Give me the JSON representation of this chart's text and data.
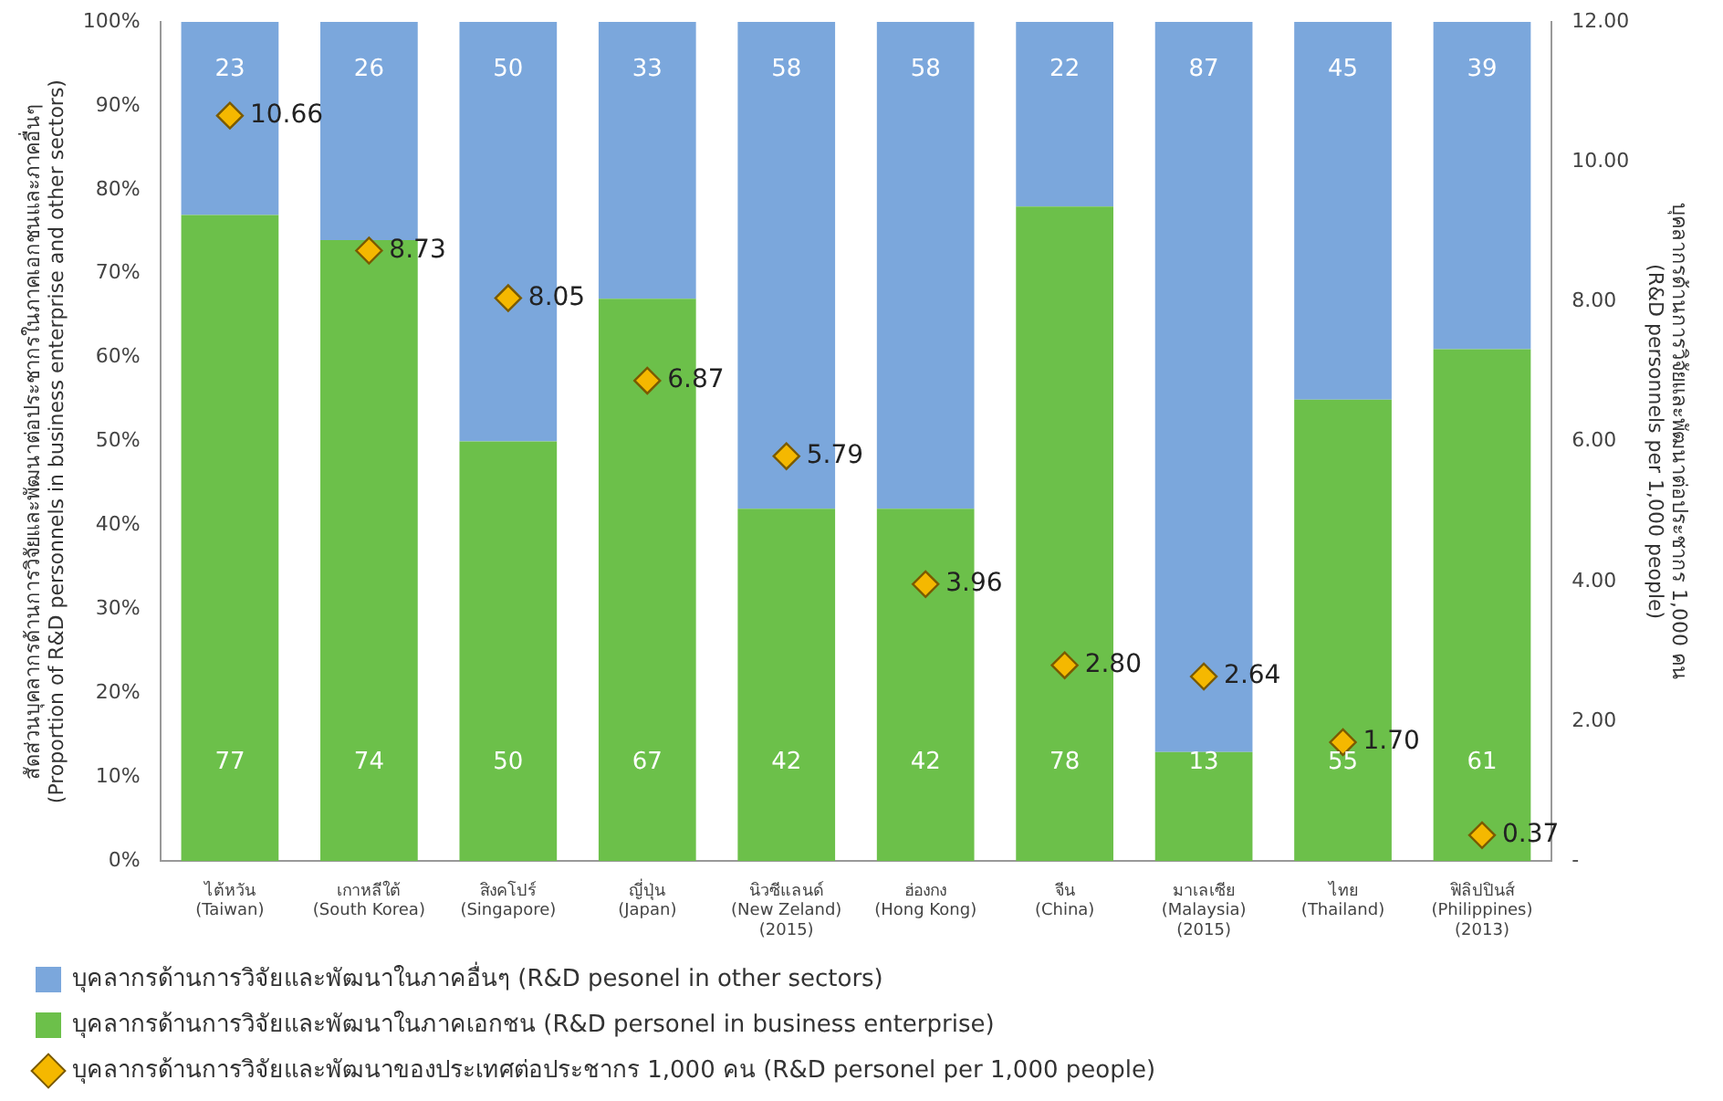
{
  "chart_data": {
    "type": "bar",
    "stacked": true,
    "data_labels": true,
    "categories": [
      "ไต้หวัน\n(Taiwan)",
      "เกาหลีใต้\n(South Korea)",
      "สิงคโปร์\n(Singapore)",
      "ญี่ปุ่น\n(Japan)",
      "นิวซีแลนด์\n(New Zeland)\n(2015)",
      "ฮ่องกง\n(Hong Kong)",
      "จีน\n(China)",
      "มาเลเซีย\n(Malaysia)\n(2015)",
      "ไทย\n(Thailand)",
      "ฟิลิปปินส์\n(Philippines)\n(2013)"
    ],
    "series": [
      {
        "name": "บุคลากรด้านการวิจัยและพัฒนาในภาคเอกชน (R&D personel in business enterprise)",
        "color": "#6cc04a",
        "values": [
          77,
          74,
          50,
          67,
          42,
          42,
          78,
          13,
          55,
          61
        ]
      },
      {
        "name": "บุคลากรด้านการวิจัยและพัฒนาในภาคอื่นๆ (R&D pesonel in other sectors)",
        "color": "#7ba7dc",
        "values": [
          23,
          26,
          50,
          33,
          58,
          58,
          22,
          87,
          45,
          39
        ]
      },
      {
        "name": "บุคลากรด้านการวิจัยและพัฒนาของประเทศต่อประชากร 1,000 คน (R&D personel per 1,000 people)",
        "type": "scatter",
        "axis": "y2",
        "marker": "diamond",
        "color": "#f5b800",
        "x": [
          "ไต้หวัน\n(Taiwan)",
          "เกาหลีใต้\n(South Korea)",
          "สิงคโปร์\n(Singapore)",
          "ญี่ปุ่น\n(Japan)",
          "นิวซีแลนด์\n(New Zeland)\n(2015)",
          "ฮ่องกง\n(Hong Kong)",
          "จีน\n(China)",
          "มาเลเซีย\n(Malaysia)\n(2015)",
          "ไทย\n(Thailand)",
          "ฟิลิปปินส์\n(Philippines)\n(2013)"
        ],
        "values": [
          10.66,
          8.73,
          8.05,
          6.87,
          5.79,
          3.96,
          2.8,
          2.64,
          1.7,
          0.37
        ],
        "value_labels": [
          "10.66",
          "8.73",
          "8.05",
          "6.87",
          "5.79",
          "3.96",
          "2.80",
          "2.64",
          "1.70",
          "0.37"
        ]
      }
    ],
    "ylabel": "สัดส่วนบุคลากรด้านการวิจัยและพัฒนาต่อประชากรในภาคเอกชนและภาคอื่นๆ\n(Proportion of R&D personnels in business enterprise and other sectors)",
    "y2label": "บุคลากรด้านการวิจัยและพัฒนาต่อประชากร 1,000 คน\n(R&D personnels per 1,000 people)",
    "ylim": [
      0,
      100
    ],
    "yticks": [
      {
        "value": 0,
        "label": "0%"
      },
      {
        "value": 10,
        "label": "10%"
      },
      {
        "value": 20,
        "label": "20%"
      },
      {
        "value": 30,
        "label": "30%"
      },
      {
        "value": 40,
        "label": "40%"
      },
      {
        "value": 50,
        "label": "50%"
      },
      {
        "value": 60,
        "label": "60%"
      },
      {
        "value": 70,
        "label": "70%"
      },
      {
        "value": 80,
        "label": "80%"
      },
      {
        "value": 90,
        "label": "90%"
      },
      {
        "value": 100,
        "label": "100%"
      }
    ],
    "y2lim": [
      0,
      12
    ],
    "y2ticks": [
      {
        "value": 0,
        "label": "-"
      },
      {
        "value": 2,
        "label": "2.00"
      },
      {
        "value": 4,
        "label": "4.00"
      },
      {
        "value": 6,
        "label": "6.00"
      },
      {
        "value": 8,
        "label": "8.00"
      },
      {
        "value": 10,
        "label": "10.00"
      },
      {
        "value": 12,
        "label": "12.00"
      }
    ],
    "grid": false,
    "legend": "bottom left"
  }
}
